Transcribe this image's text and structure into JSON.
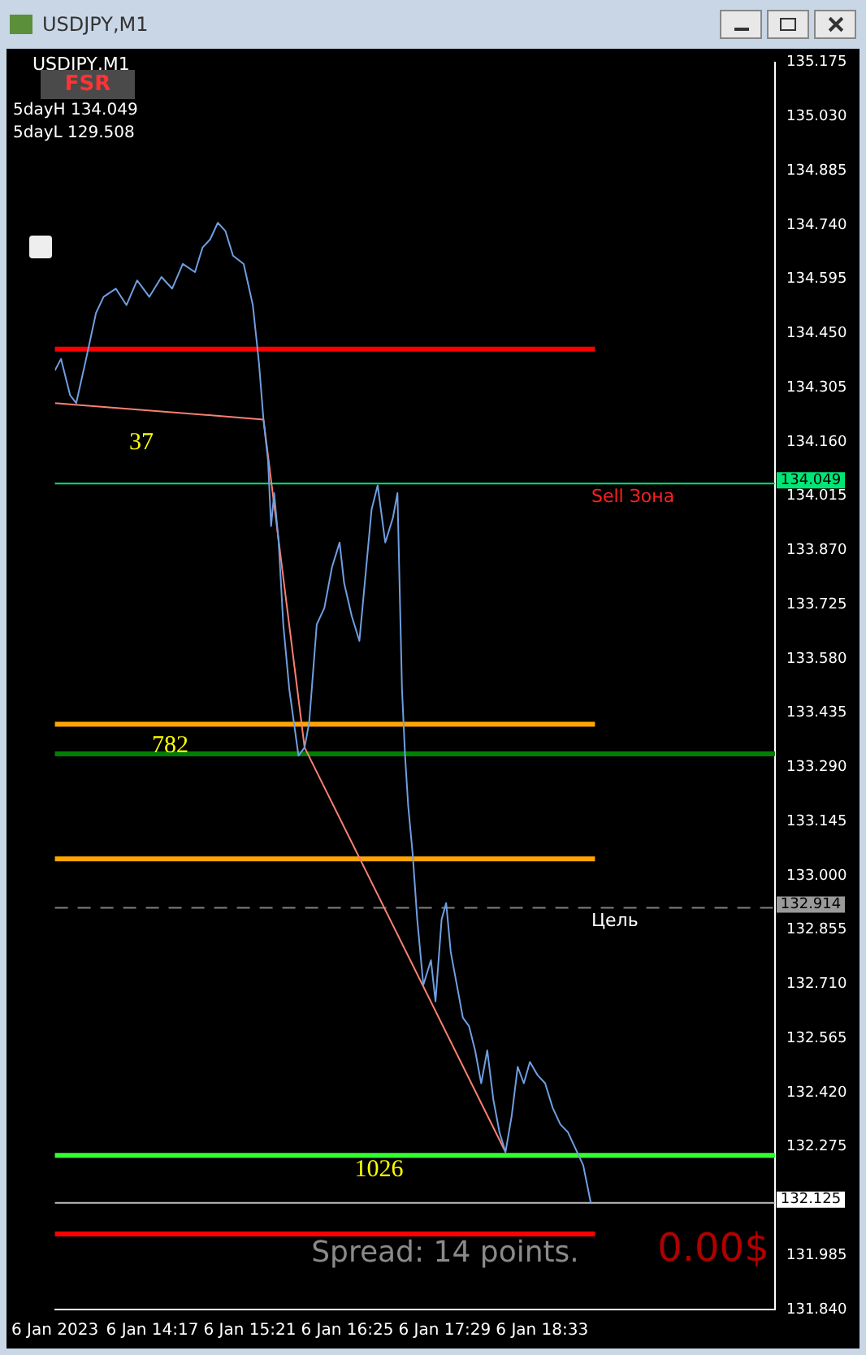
{
  "chart_data": {
    "type": "line",
    "title": "USDJPY,M1",
    "x": [
      "2023-01-06T13:13",
      "2023-01-06T13:17",
      "2023-01-06T13:23",
      "2023-01-06T13:27",
      "2023-01-06T13:33",
      "2023-01-06T13:40",
      "2023-01-06T13:45",
      "2023-01-06T13:53",
      "2023-01-06T14:00",
      "2023-01-06T14:07",
      "2023-01-06T14:15",
      "2023-01-06T14:23",
      "2023-01-06T14:30",
      "2023-01-06T14:37",
      "2023-01-06T14:45",
      "2023-01-06T14:50",
      "2023-01-06T14:55",
      "2023-01-06T15:00",
      "2023-01-06T15:05",
      "2023-01-06T15:10",
      "2023-01-06T15:17",
      "2023-01-06T15:23",
      "2023-01-06T15:27",
      "2023-01-06T15:30",
      "2023-01-06T15:33",
      "2023-01-06T15:35",
      "2023-01-06T15:37",
      "2023-01-06T15:40",
      "2023-01-06T15:43",
      "2023-01-06T15:47",
      "2023-01-06T15:50",
      "2023-01-06T15:53",
      "2023-01-06T15:57",
      "2023-01-06T16:00",
      "2023-01-06T16:05",
      "2023-01-06T16:10",
      "2023-01-06T16:15",
      "2023-01-06T16:20",
      "2023-01-06T16:23",
      "2023-01-06T16:28",
      "2023-01-06T16:33",
      "2023-01-06T16:37",
      "2023-01-06T16:41",
      "2023-01-06T16:45",
      "2023-01-06T16:50",
      "2023-01-06T16:55",
      "2023-01-06T16:58",
      "2023-01-06T17:01",
      "2023-01-06T17:03",
      "2023-01-06T17:05",
      "2023-01-06T17:08",
      "2023-01-06T17:11",
      "2023-01-06T17:15",
      "2023-01-06T17:20",
      "2023-01-06T17:23",
      "2023-01-06T17:27",
      "2023-01-06T17:30",
      "2023-01-06T17:33",
      "2023-01-06T17:37",
      "2023-01-06T17:41",
      "2023-01-06T17:45",
      "2023-01-06T17:49",
      "2023-01-06T17:53",
      "2023-01-06T17:57",
      "2023-01-06T18:01",
      "2023-01-06T18:05",
      "2023-01-06T18:09",
      "2023-01-06T18:13",
      "2023-01-06T18:17",
      "2023-01-06T18:21",
      "2023-01-06T18:25",
      "2023-01-06T18:30",
      "2023-01-06T18:35",
      "2023-01-06T18:40",
      "2023-01-06T18:45",
      "2023-01-06T18:50",
      "2023-01-06T18:55",
      "2023-01-06T19:00",
      "2023-01-06T19:05"
    ],
    "series": [
      {
        "color": "#6f9ee0",
        "values": [
          134.351,
          134.382,
          134.285,
          134.264,
          134.373,
          134.505,
          134.548,
          134.57,
          134.526,
          134.592,
          134.548,
          134.601,
          134.57,
          134.636,
          134.614,
          134.68,
          134.702,
          134.746,
          134.724,
          134.658,
          134.636,
          134.526,
          134.373,
          134.22,
          134.11,
          133.935,
          134.023,
          133.891,
          133.672,
          133.497,
          133.409,
          133.321,
          133.343,
          133.409,
          133.672,
          133.716,
          133.825,
          133.891,
          133.782,
          133.694,
          133.628,
          133.803,
          133.979,
          134.044,
          133.891,
          133.957,
          134.023,
          133.497,
          133.321,
          133.19,
          133.058,
          132.883,
          132.708,
          132.774,
          132.664,
          132.883,
          132.927,
          132.796,
          132.708,
          132.62,
          132.598,
          132.533,
          132.445,
          132.533,
          132.401,
          132.314,
          132.261,
          132.357,
          132.489,
          132.445,
          132.502,
          132.467,
          132.445,
          132.379,
          132.335,
          132.314,
          132.27,
          132.226,
          132.125
        ]
      },
      {
        "type": "line",
        "color": "#fa8072",
        "x": [
          "2023-01-06T13:13",
          "2023-01-06T15:30",
          "2023-01-06T15:57",
          "2023-01-06T18:09"
        ],
        "values": [
          134.264,
          134.22,
          133.343,
          132.261
        ]
      }
    ],
    "xlim": [
      "2023-01-06T13:13",
      "2023-01-06T21:06"
    ],
    "xticks": [
      {
        "value": "2023-01-06T13:13",
        "label": "6 Jan 2023"
      },
      {
        "value": "2023-01-06T14:17",
        "label": "6 Jan 14:17"
      },
      {
        "value": "2023-01-06T15:21",
        "label": "6 Jan 15:21"
      },
      {
        "value": "2023-01-06T16:25",
        "label": "6 Jan 16:25"
      },
      {
        "value": "2023-01-06T17:29",
        "label": "6 Jan 17:29"
      },
      {
        "value": "2023-01-06T18:33",
        "label": "6 Jan 18:33"
      }
    ],
    "ylim": [
      131.84,
      135.175
    ],
    "yticks": [
      {
        "value": 131.84,
        "label": "131.840"
      },
      {
        "value": 131.985,
        "label": "131.985"
      },
      {
        "value": 132.275,
        "label": "132.275"
      },
      {
        "value": 132.42,
        "label": "132.420"
      },
      {
        "value": 132.565,
        "label": "132.565"
      },
      {
        "value": 132.71,
        "label": "132.710"
      },
      {
        "value": 132.855,
        "label": "132.855"
      },
      {
        "value": 133.0,
        "label": "133.000"
      },
      {
        "value": 133.145,
        "label": "133.145"
      },
      {
        "value": 133.29,
        "label": "133.290"
      },
      {
        "value": 133.435,
        "label": "133.435"
      },
      {
        "value": 133.58,
        "label": "133.580"
      },
      {
        "value": 133.725,
        "label": "133.725"
      },
      {
        "value": 133.87,
        "label": "133.870"
      },
      {
        "value": 134.015,
        "label": "134.015"
      },
      {
        "value": 134.16,
        "label": "134.160"
      },
      {
        "value": 134.305,
        "label": "134.305"
      },
      {
        "value": 134.45,
        "label": "134.450"
      },
      {
        "value": 134.595,
        "label": "134.595"
      },
      {
        "value": 134.74,
        "label": "134.740"
      },
      {
        "value": 134.885,
        "label": "134.885"
      },
      {
        "value": 135.03,
        "label": "135.030"
      },
      {
        "value": 135.175,
        "label": "135.175"
      }
    ],
    "ref_lines": [
      {
        "axis": "y",
        "value": 134.408,
        "color": "#ff0000"
      },
      {
        "axis": "y",
        "value": 134.049,
        "color": "#00e676",
        "label": "Sell Зона"
      },
      {
        "axis": "y",
        "value": 133.405,
        "color": "#ffa500"
      },
      {
        "axis": "y",
        "value": 133.326,
        "color": "#008000"
      },
      {
        "axis": "y",
        "value": 133.045,
        "color": "#ffa500"
      },
      {
        "axis": "y",
        "value": 132.914,
        "color": "#808080",
        "line_style": "dashed",
        "label": "Цель"
      },
      {
        "axis": "y",
        "value": 132.252,
        "color": "#32ff32"
      },
      {
        "axis": "y",
        "value": 132.125,
        "color": "#c0c0c0"
      },
      {
        "axis": "y",
        "value": 132.042,
        "color": "#ff0000"
      }
    ],
    "annotations": [
      "USDJPY,M1",
      "FSR",
      "5dayH 134.049",
      "5dayL 129.508",
      "Spread: 14 points.",
      "0.00$",
      "37",
      "782",
      "1026",
      "134.049",
      "132.914",
      "132.125"
    ],
    "grid": false,
    "legend": false,
    "marker": "none",
    "line_style": "solid"
  }
}
